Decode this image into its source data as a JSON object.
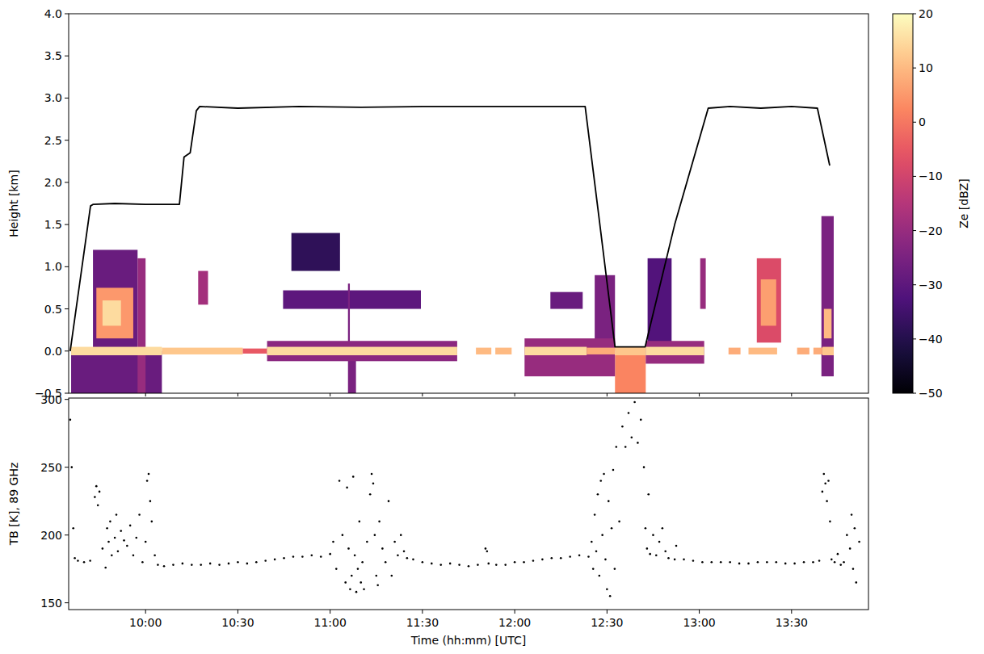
{
  "chart_data": [
    {
      "type": "heatmap",
      "ylabel": "Height [km]",
      "xlim": [
        575,
        835
      ],
      "xticks": [
        600,
        630,
        660,
        690,
        720,
        750,
        780,
        810
      ],
      "ylim": [
        -0.5,
        4.0
      ],
      "yticks": [
        {
          "value": -0.5,
          "label": "−0.5"
        },
        {
          "value": 0,
          "label": "0.0"
        },
        0.5,
        {
          "value": 1,
          "label": "1.0"
        },
        1.5,
        {
          "value": 2,
          "label": "2.0"
        },
        2.5,
        {
          "value": 3,
          "label": "3.0"
        },
        3.5,
        {
          "value": 4,
          "label": "4.0"
        }
      ],
      "tick_labels": "y",
      "cells": [
        {
          "t0": 575.8,
          "t1": 605.3,
          "h0": -0.5,
          "h1": 0.0,
          "ze": -28
        },
        {
          "t0": 582.9,
          "t1": 597.4,
          "h0": 0.0,
          "h1": 1.2,
          "ze": -28
        },
        {
          "t0": 584,
          "t1": 596,
          "h0": 0.15,
          "h1": 0.75,
          "ze": 5
        },
        {
          "t0": 586,
          "t1": 592,
          "h0": 0.3,
          "h1": 0.6,
          "ze": 15
        },
        {
          "t0": 597.4,
          "t1": 600,
          "h0": -0.5,
          "h1": 1.1,
          "ze": -20
        },
        {
          "t0": 617.1,
          "t1": 620.3,
          "h0": 0.55,
          "h1": 0.95,
          "ze": -18
        },
        {
          "t0": 647.4,
          "t1": 663.2,
          "h0": 0.95,
          "h1": 1.4,
          "ze": -38
        },
        {
          "t0": 644.7,
          "t1": 689.5,
          "h0": 0.5,
          "h1": 0.72,
          "ze": -30
        },
        {
          "t0": 665.8,
          "t1": 666.4,
          "h0": 0.1,
          "h1": 0.8,
          "ze": -25
        },
        {
          "t0": 665.8,
          "t1": 668.4,
          "h0": -0.5,
          "h1": -0.1,
          "ze": -25
        },
        {
          "t0": 731.6,
          "t1": 742.1,
          "h0": 0.5,
          "h1": 0.7,
          "ze": -28
        },
        {
          "t0": 746,
          "t1": 752.6,
          "h0": 0.0,
          "h1": 0.9,
          "ze": -25
        },
        {
          "t0": 752.6,
          "t1": 762.6,
          "h0": -0.5,
          "h1": -0.05,
          "ze": 2
        },
        {
          "t0": 763.2,
          "t1": 771,
          "h0": 0.1,
          "h1": 1.1,
          "ze": -32
        },
        {
          "t0": 780.3,
          "t1": 782.1,
          "h0": 0.5,
          "h1": 1.1,
          "ze": -20
        },
        {
          "t0": 798.7,
          "t1": 806.6,
          "h0": 0.1,
          "h1": 1.1,
          "ze": -8
        },
        {
          "t0": 800,
          "t1": 805,
          "h0": 0.3,
          "h1": 0.85,
          "ze": 6
        },
        {
          "t0": 819.7,
          "t1": 823.7,
          "h0": -0.3,
          "h1": 1.6,
          "ze": -25
        },
        {
          "t0": 820.5,
          "t1": 823,
          "h0": 0.15,
          "h1": 0.5,
          "ze": 10
        },
        {
          "t0": 639.5,
          "t1": 701.3,
          "h0": -0.12,
          "h1": 0.12,
          "ze": -22
        },
        {
          "t0": 723.2,
          "t1": 752.6,
          "h0": -0.3,
          "h1": 0.15,
          "ze": -20
        },
        {
          "t0": 762.6,
          "t1": 781.6,
          "h0": -0.15,
          "h1": 0.12,
          "ze": -20
        },
        {
          "t0": 575.8,
          "t1": 605.3,
          "h0": -0.05,
          "h1": 0.05,
          "ze": 15
        },
        {
          "t0": 605.3,
          "t1": 631.6,
          "h0": -0.04,
          "h1": 0.04,
          "ze": 12
        },
        {
          "t0": 631.6,
          "t1": 639.5,
          "h0": -0.03,
          "h1": 0.03,
          "ze": -5
        },
        {
          "t0": 639.5,
          "t1": 701.3,
          "h0": -0.05,
          "h1": 0.05,
          "ze": 15
        },
        {
          "t0": 707.4,
          "t1": 712.4,
          "h0": -0.04,
          "h1": 0.04,
          "ze": 10
        },
        {
          "t0": 713.7,
          "t1": 719,
          "h0": -0.04,
          "h1": 0.04,
          "ze": 10
        },
        {
          "t0": 723.2,
          "t1": 743.4,
          "h0": -0.05,
          "h1": 0.05,
          "ze": 15
        },
        {
          "t0": 743.4,
          "t1": 752.6,
          "h0": -0.04,
          "h1": 0.04,
          "ze": 8
        },
        {
          "t0": 752.6,
          "t1": 762.6,
          "h0": -0.05,
          "h1": 0.05,
          "ze": 12
        },
        {
          "t0": 762.6,
          "t1": 781.6,
          "h0": -0.05,
          "h1": 0.05,
          "ze": 15
        },
        {
          "t0": 789.5,
          "t1": 793.4,
          "h0": -0.04,
          "h1": 0.04,
          "ze": 8
        },
        {
          "t0": 796,
          "t1": 805.3,
          "h0": -0.04,
          "h1": 0.04,
          "ze": 10
        },
        {
          "t0": 811.8,
          "t1": 815.8,
          "h0": -0.04,
          "h1": 0.04,
          "ze": 8
        },
        {
          "t0": 817.1,
          "t1": 820,
          "h0": -0.04,
          "h1": 0.04,
          "ze": 8
        },
        {
          "t0": 820,
          "t1": 823.7,
          "h0": -0.05,
          "h1": 0.05,
          "ze": 12
        }
      ],
      "colorbar": {
        "label": "Ze [dBZ]",
        "range": [
          -50,
          20
        ],
        "ticks": [
          {
            "value": -50,
            "label": "−50"
          },
          {
            "value": -40,
            "label": "−40"
          },
          {
            "value": -30,
            "label": "−30"
          },
          {
            "value": -20,
            "label": "−20"
          },
          {
            "value": -10,
            "label": "−10"
          },
          0,
          10,
          20
        ]
      },
      "line": {
        "type": "line",
        "color": "#000000",
        "x": [
          575.5,
          582.1,
          583,
          590,
          600,
          611,
          612.5,
          614.5,
          616.5,
          617.6,
          630,
          650,
          670,
          690,
          710,
          730,
          742.9,
          747,
          752.6,
          762.4,
          772,
          782.9,
          790,
          800,
          810,
          818.4,
          822.4
        ],
        "values": [
          0.0,
          1.72,
          1.74,
          1.75,
          1.74,
          1.74,
          2.3,
          2.35,
          2.85,
          2.9,
          2.88,
          2.9,
          2.89,
          2.9,
          2.9,
          2.9,
          2.9,
          1.7,
          0.05,
          0.05,
          1.5,
          2.88,
          2.9,
          2.88,
          2.9,
          2.88,
          2.2
        ]
      }
    },
    {
      "type": "scatter",
      "xlabel": "Time (hh:mm) [UTC]",
      "ylabel": "TB [K], 89 GHz",
      "xlim": [
        575,
        835
      ],
      "xticks": [
        {
          "value": 600,
          "label": "10:00"
        },
        {
          "value": 630,
          "label": "10:30"
        },
        {
          "value": 660,
          "label": "11:00"
        },
        {
          "value": 690,
          "label": "11:30"
        },
        {
          "value": 720,
          "label": "12:00"
        },
        {
          "value": 750,
          "label": "12:30"
        },
        {
          "value": 780,
          "label": "13:00"
        },
        {
          "value": 810,
          "label": "13:30"
        }
      ],
      "ylim": [
        145,
        301
      ],
      "yticks": [
        150,
        200,
        250,
        300
      ],
      "color": "#000000",
      "marker": "dot",
      "x": [
        575.5,
        576,
        576.5,
        577,
        578,
        580,
        582,
        583.5,
        584,
        584.5,
        585,
        586,
        587,
        587.5,
        588,
        588.5,
        589,
        590,
        590.5,
        591,
        592,
        593,
        594,
        595,
        596,
        597,
        598,
        599,
        600,
        600.5,
        601,
        601.5,
        602,
        603,
        604,
        606,
        609,
        612,
        615,
        618,
        621,
        624,
        627,
        630,
        633,
        636,
        639,
        642,
        645,
        648,
        651,
        654,
        657,
        660,
        661,
        662,
        663,
        664,
        665,
        665.5,
        666,
        666.5,
        667,
        667.5,
        668,
        668.5,
        669,
        669.5,
        670,
        670.5,
        671,
        672,
        673,
        673.5,
        674,
        674.5,
        675,
        675.5,
        676,
        677,
        678,
        679,
        680,
        681,
        682,
        683,
        684,
        685,
        687,
        690,
        693,
        696,
        699,
        702,
        705,
        708,
        710.5,
        711,
        711.5,
        714,
        717,
        720,
        723,
        726,
        729,
        732,
        735,
        738,
        741,
        744,
        745,
        745.5,
        746,
        746.5,
        747,
        747.5,
        748,
        748.5,
        749,
        749.5,
        750,
        750.5,
        751,
        751.5,
        752,
        752.5,
        753,
        754,
        755,
        756,
        757,
        758,
        759,
        760,
        761,
        762,
        762.5,
        763,
        763.5,
        764,
        765,
        766,
        767,
        768,
        769,
        770,
        772,
        772.5,
        775,
        778,
        781,
        784,
        787,
        790,
        793,
        796,
        799,
        802,
        805,
        808,
        811,
        814,
        817,
        819,
        820,
        820.5,
        821,
        821.5,
        822,
        822.5,
        823,
        824,
        825,
        826,
        827,
        828,
        829,
        829.5,
        830,
        830.5,
        831,
        832
      ],
      "values": [
        285,
        250,
        205,
        183,
        181,
        180,
        181,
        228,
        236,
        222,
        232,
        190,
        176,
        205,
        195,
        210,
        185,
        198,
        215,
        188,
        203,
        196,
        192,
        207,
        185,
        198,
        215,
        180,
        195,
        240,
        245,
        225,
        210,
        185,
        178,
        177,
        178,
        179,
        178,
        178,
        179,
        178,
        179,
        180,
        179,
        180,
        181,
        182,
        183,
        184,
        184,
        185,
        184,
        186,
        195,
        175,
        240,
        200,
        165,
        235,
        190,
        160,
        170,
        243,
        185,
        158,
        175,
        210,
        165,
        180,
        160,
        195,
        230,
        245,
        238,
        200,
        170,
        163,
        210,
        190,
        180,
        225,
        170,
        195,
        185,
        200,
        188,
        183,
        182,
        180,
        179,
        178,
        179,
        178,
        177,
        178,
        190,
        188,
        179,
        178,
        178,
        180,
        180,
        181,
        182,
        183,
        183,
        184,
        185,
        184,
        195,
        175,
        215,
        188,
        230,
        170,
        240,
        200,
        245,
        182,
        160,
        225,
        155,
        205,
        248,
        175,
        265,
        210,
        280,
        265,
        290,
        272,
        298,
        268,
        285,
        250,
        205,
        190,
        230,
        186,
        200,
        185,
        195,
        205,
        188,
        183,
        182,
        192,
        182,
        181,
        180,
        180,
        180,
        180,
        179,
        179,
        180,
        180,
        180,
        179,
        179,
        180,
        180,
        181,
        232,
        245,
        238,
        225,
        240,
        210,
        182,
        180,
        186,
        178,
        180,
        200,
        190,
        215,
        175,
        205,
        165,
        195
      ]
    }
  ]
}
